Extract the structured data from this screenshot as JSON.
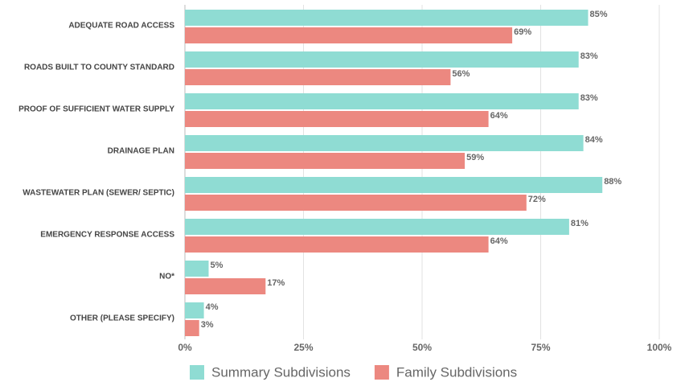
{
  "chart_data": {
    "type": "bar",
    "orientation": "horizontal",
    "categories": [
      "ADEQUATE ROAD ACCESS",
      "ROADS BUILT TO COUNTY STANDARD",
      "PROOF OF SUFFICIENT WATER SUPPLY",
      "DRAINAGE PLAN",
      "WASTEWATER PLAN (SEWER/ SEPTIC)",
      "EMERGENCY RESPONSE ACCESS",
      "NO*",
      "OTHER (PLEASE SPECIFY)"
    ],
    "series": [
      {
        "name": "Summary Subdivisions",
        "color": "#8fdcd3",
        "values": [
          85,
          83,
          83,
          84,
          88,
          81,
          5,
          4
        ],
        "value_labels": [
          "85%",
          "83%",
          "83%",
          "84%",
          "88%",
          "81%",
          "5%",
          "4%"
        ]
      },
      {
        "name": "Family Subdivisions",
        "color": "#ec8880",
        "values": [
          69,
          56,
          64,
          59,
          72,
          64,
          17,
          3
        ],
        "value_labels": [
          "69%",
          "56%",
          "64%",
          "59%",
          "72%",
          "64%",
          "17%",
          "3%"
        ]
      }
    ],
    "xlim": [
      0,
      100
    ],
    "xticks": [
      {
        "value": 0,
        "label": "0%"
      },
      {
        "value": 25,
        "label": "25%"
      },
      {
        "value": 50,
        "label": "50%"
      },
      {
        "value": 75,
        "label": "75%"
      },
      {
        "value": 100,
        "label": "100%"
      }
    ],
    "grid": true,
    "legend": "bottom"
  }
}
